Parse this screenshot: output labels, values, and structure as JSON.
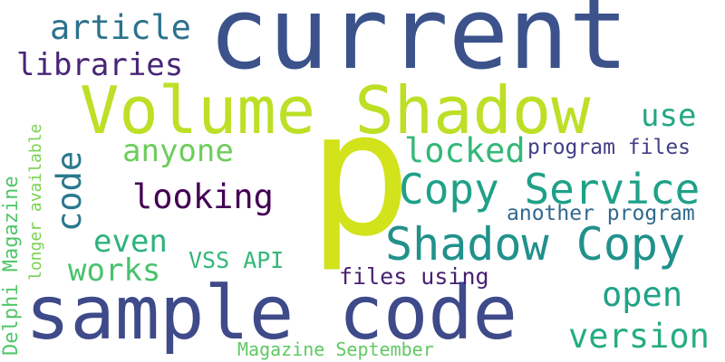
{
  "words": [
    {
      "text": "current",
      "color": "#3b528b"
    },
    {
      "text": "p",
      "color": "#d2e21b"
    },
    {
      "text": "sample code",
      "color": "#3e4a89"
    },
    {
      "text": "Volume Shadow",
      "color": "#bddf26"
    },
    {
      "text": "Shadow Copy",
      "color": "#21918c"
    },
    {
      "text": "Copy Service",
      "color": "#1fa187"
    },
    {
      "text": "article",
      "color": "#2c728e"
    },
    {
      "text": "libraries",
      "color": "#482576"
    },
    {
      "text": "looking",
      "color": "#440154"
    },
    {
      "text": "locked",
      "color": "#35b779"
    },
    {
      "text": "anyone",
      "color": "#6ccd5a"
    },
    {
      "text": "use",
      "color": "#22a884"
    },
    {
      "text": "program files",
      "color": "#433e85"
    },
    {
      "text": "another program",
      "color": "#31688e"
    },
    {
      "text": "code",
      "color": "#2a788e"
    },
    {
      "text": "even",
      "color": "#2db27d"
    },
    {
      "text": "works",
      "color": "#4ac16d"
    },
    {
      "text": "VSS API",
      "color": "#35b779"
    },
    {
      "text": "files using",
      "color": "#481f70"
    },
    {
      "text": "open",
      "color": "#20a386"
    },
    {
      "text": "version",
      "color": "#25ac82"
    },
    {
      "text": "Magazine September",
      "color": "#5ec962"
    },
    {
      "text": "Delphi Magazine",
      "color": "#52c569"
    },
    {
      "text": "longer available",
      "color": "#7ad151"
    }
  ]
}
